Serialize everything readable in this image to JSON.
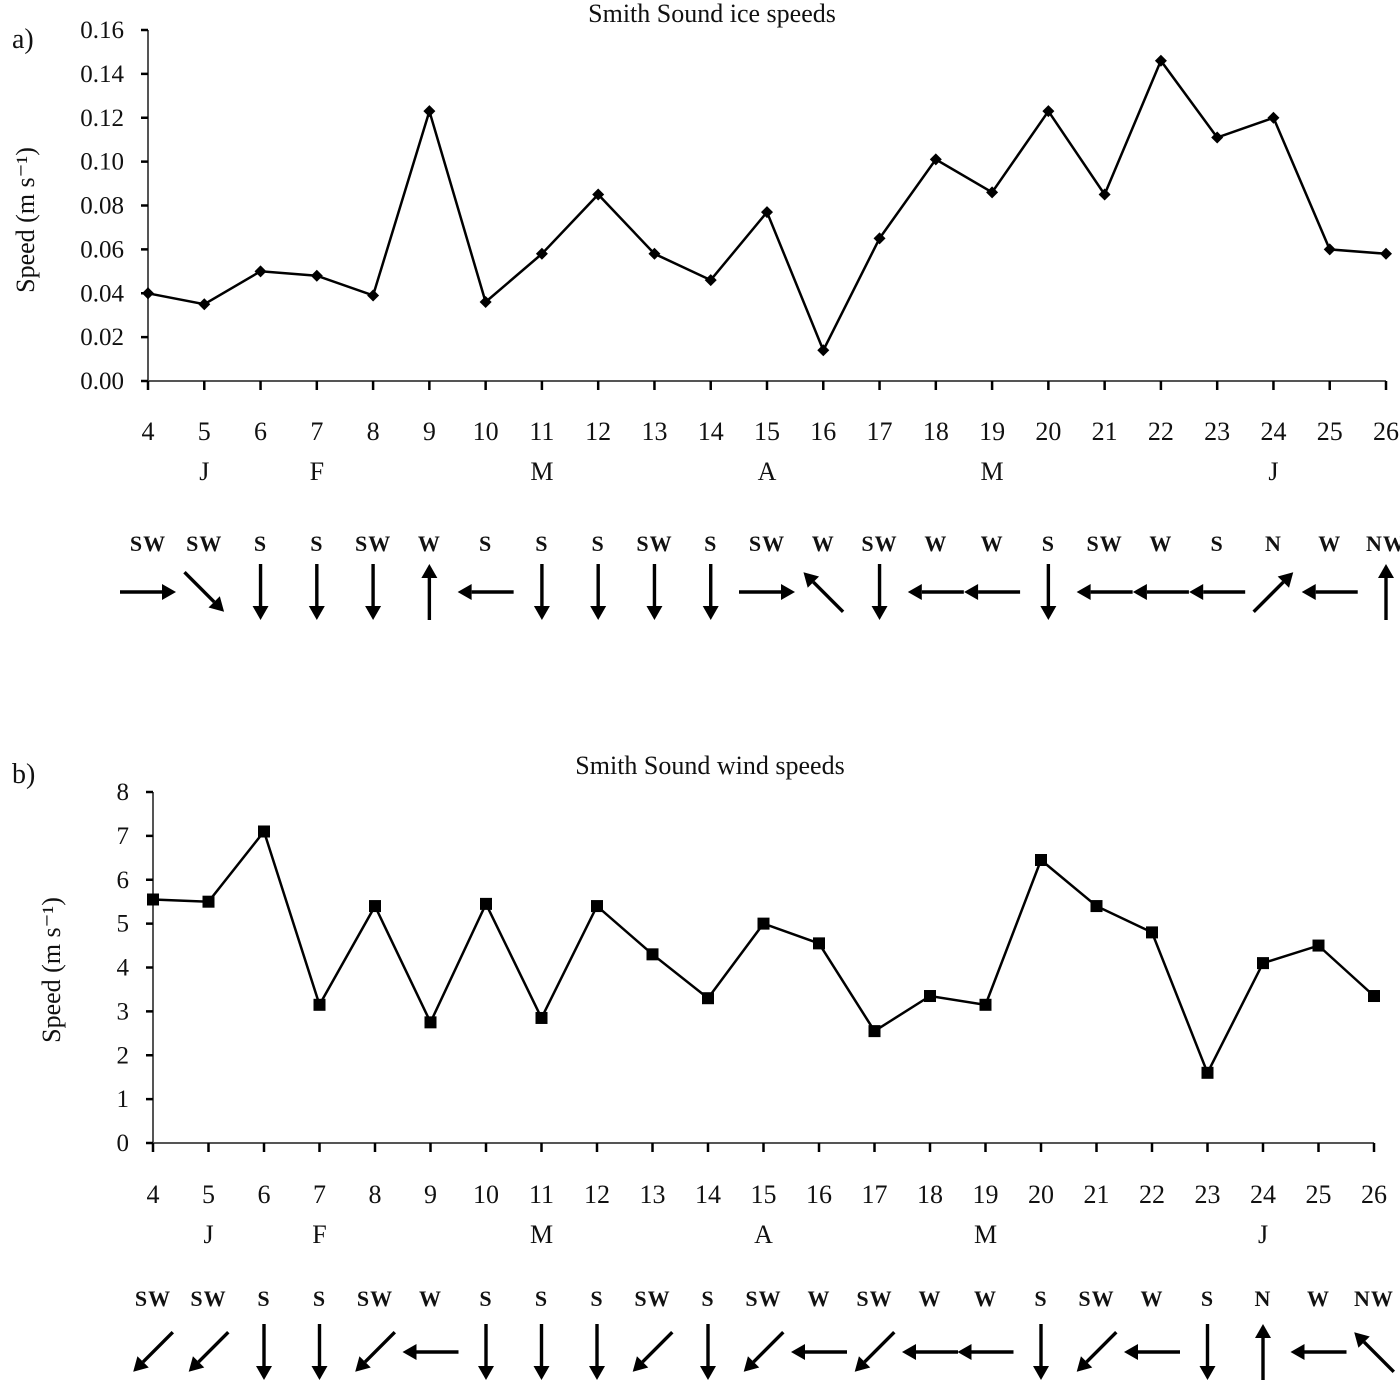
{
  "chart_data": [
    {
      "type": "line",
      "panel": "a)",
      "title": "Smith Sound ice speeds",
      "ylabel": "Speed (m s⁻¹)",
      "xlabel": "",
      "ylim": [
        0,
        0.16
      ],
      "yticks": [
        "0.00",
        "0.02",
        "0.04",
        "0.06",
        "0.08",
        "0.10",
        "0.12",
        "0.14",
        "0.16"
      ],
      "x": [
        4,
        5,
        6,
        7,
        8,
        9,
        10,
        11,
        12,
        13,
        14,
        15,
        16,
        17,
        18,
        19,
        20,
        21,
        22,
        23,
        24,
        25,
        26
      ],
      "values": [
        0.04,
        0.035,
        0.05,
        0.048,
        0.039,
        0.123,
        0.036,
        0.058,
        0.085,
        0.058,
        0.046,
        0.077,
        0.014,
        0.065,
        0.101,
        0.086,
        0.123,
        0.085,
        0.146,
        0.111,
        0.12,
        0.06,
        0.058
      ],
      "marker": "diamond",
      "months": [
        {
          "label": "J",
          "x": 5
        },
        {
          "label": "F",
          "x": 7
        },
        {
          "label": "M",
          "x": 11
        },
        {
          "label": "A",
          "x": 15
        },
        {
          "label": "M",
          "x": 19
        },
        {
          "label": "J",
          "x": 24
        }
      ],
      "directions": [
        "SW",
        "SW",
        "S",
        "S",
        "SW",
        "W",
        "S",
        "S",
        "S",
        "SW",
        "S",
        "SW",
        "W",
        "SW",
        "W",
        "W",
        "S",
        "SW",
        "W",
        "S",
        "N",
        "W",
        "NW"
      ],
      "arrows": [
        "E",
        "SE",
        "S",
        "S",
        "S",
        "N",
        "W",
        "S",
        "S",
        "S",
        "S",
        "E",
        "NW",
        "S",
        "W",
        "W",
        "S",
        "W",
        "W",
        "W",
        "NE",
        "W",
        "N"
      ]
    },
    {
      "type": "line",
      "panel": "b)",
      "title": "Smith Sound wind speeds",
      "ylabel": "Speed (m s⁻¹)",
      "xlabel": "",
      "ylim": [
        0,
        8
      ],
      "yticks": [
        "0",
        "1",
        "2",
        "3",
        "4",
        "5",
        "6",
        "7",
        "8"
      ],
      "x": [
        4,
        5,
        6,
        7,
        8,
        9,
        10,
        11,
        12,
        13,
        14,
        15,
        16,
        17,
        18,
        19,
        20,
        21,
        22,
        23,
        24,
        25,
        26
      ],
      "values": [
        5.55,
        5.5,
        7.1,
        3.15,
        5.4,
        2.75,
        5.45,
        2.85,
        5.4,
        4.3,
        3.3,
        5.0,
        4.55,
        2.55,
        3.35,
        3.15,
        6.45,
        5.4,
        4.8,
        1.6,
        4.1,
        4.5,
        3.35
      ],
      "marker": "square",
      "months": [
        {
          "label": "J",
          "x": 5
        },
        {
          "label": "F",
          "x": 7
        },
        {
          "label": "M",
          "x": 11
        },
        {
          "label": "A",
          "x": 15
        },
        {
          "label": "M",
          "x": 19
        },
        {
          "label": "J",
          "x": 24
        }
      ],
      "directions": [
        "SW",
        "SW",
        "S",
        "S",
        "SW",
        "W",
        "S",
        "S",
        "S",
        "SW",
        "S",
        "SW",
        "W",
        "SW",
        "W",
        "W",
        "S",
        "SW",
        "W",
        "S",
        "N",
        "W",
        "NW"
      ],
      "arrows": [
        "SW",
        "SW",
        "S",
        "S",
        "SW",
        "W",
        "S",
        "S",
        "S",
        "SW",
        "S",
        "SW",
        "W",
        "SW",
        "W",
        "W",
        "S",
        "SW",
        "W",
        "S",
        "N",
        "W",
        "NW"
      ]
    }
  ]
}
